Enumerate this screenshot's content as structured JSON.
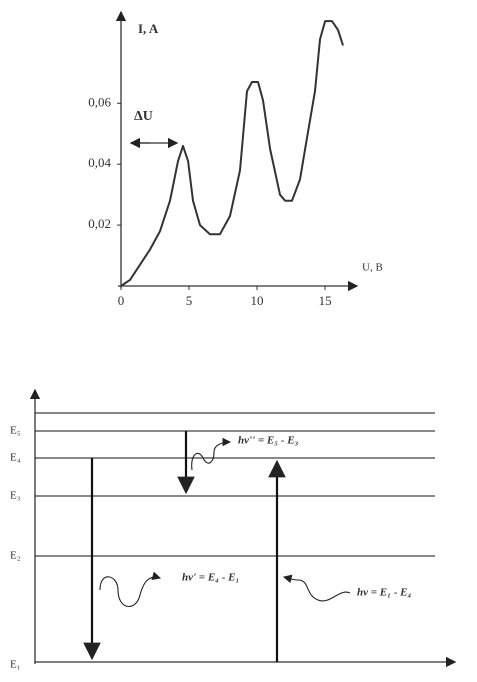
{
  "chart_data": {
    "type": "line",
    "y_label": "I, A",
    "x_label": "U, B",
    "annotation": "ΔU",
    "color": "#333333",
    "x": [
      0,
      0.66,
      2.13,
      2.87,
      3.6,
      4.19,
      4.56,
      4.93,
      5.29,
      5.81,
      6.54,
      7.28,
      8.01,
      8.75,
      9.26,
      9.63,
      10.07,
      10.44,
      10.96,
      11.69,
      12.06,
      12.57,
      13.16,
      13.53,
      14.26,
      14.63,
      15.0,
      15.51,
      15.96,
      16.32
    ],
    "values": [
      0,
      0.002,
      0.012,
      0.018,
      0.028,
      0.041,
      0.046,
      0.041,
      0.028,
      0.02,
      0.017,
      0.017,
      0.023,
      0.038,
      0.064,
      0.067,
      0.067,
      0.061,
      0.045,
      0.03,
      0.028,
      0.028,
      0.035,
      0.045,
      0.064,
      0.081,
      0.087,
      0.087,
      0.084,
      0.079
    ],
    "xlim": [
      0,
      17.2
    ],
    "ylim": [
      0,
      0.089
    ],
    "xticks": [
      0,
      5,
      10,
      15
    ],
    "yticks": [
      {
        "value": 0.02,
        "label": "0,02"
      },
      {
        "value": 0.04,
        "label": "0,04"
      },
      {
        "value": 0.06,
        "label": "0,06"
      }
    ]
  },
  "diagram": {
    "levels": [
      {
        "label": "E₁"
      },
      {
        "label": "E₂"
      },
      {
        "label": "E₃"
      },
      {
        "label": "E₄"
      },
      {
        "label": "E₅"
      }
    ],
    "transitions": [
      {
        "label": "hν'' = E₅ - E₃"
      },
      {
        "label": "hν' = E₄ - E₁"
      },
      {
        "label": "hν = E₁ - E₄"
      }
    ]
  }
}
